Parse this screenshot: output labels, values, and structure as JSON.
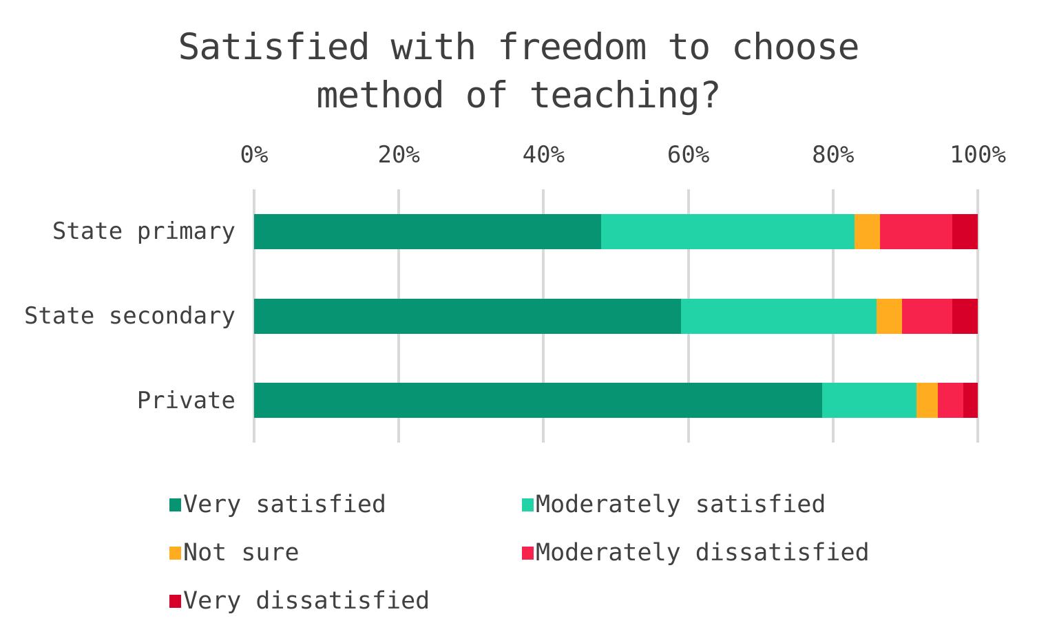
{
  "chart_data": {
    "type": "bar",
    "orientation": "horizontal-stacked",
    "title": "Satisfied with freedom to choose method of teaching?",
    "categories": [
      "State primary",
      "State secondary",
      "Private"
    ],
    "series": [
      {
        "name": "Very satisfied",
        "color": "#069472",
        "values": [
          48,
          59,
          78.5
        ]
      },
      {
        "name": "Moderately satisfied",
        "color": "#21D3A6",
        "values": [
          35,
          27,
          13
        ]
      },
      {
        "name": "Not sure",
        "color": "#FFAC20",
        "values": [
          3.5,
          3.5,
          3
        ]
      },
      {
        "name": "Moderately dissatisfied",
        "color": "#F8234C",
        "values": [
          10,
          7,
          3.5
        ]
      },
      {
        "name": "Very dissatisfied",
        "color": "#D60029",
        "values": [
          3.5,
          3.5,
          2
        ]
      }
    ],
    "x_axis": {
      "ticks": [
        "0%",
        "20%",
        "40%",
        "60%",
        "80%",
        "100%"
      ],
      "min": 0,
      "max": 100,
      "position": "top",
      "grid": true
    },
    "legend": {
      "position": "bottom",
      "columns": 2,
      "swatch": "square"
    },
    "colors": {
      "text": "#404040",
      "title_text": "#3F3F3F",
      "gridline": "#D9D9D9",
      "background": "#FFFFFF"
    }
  }
}
